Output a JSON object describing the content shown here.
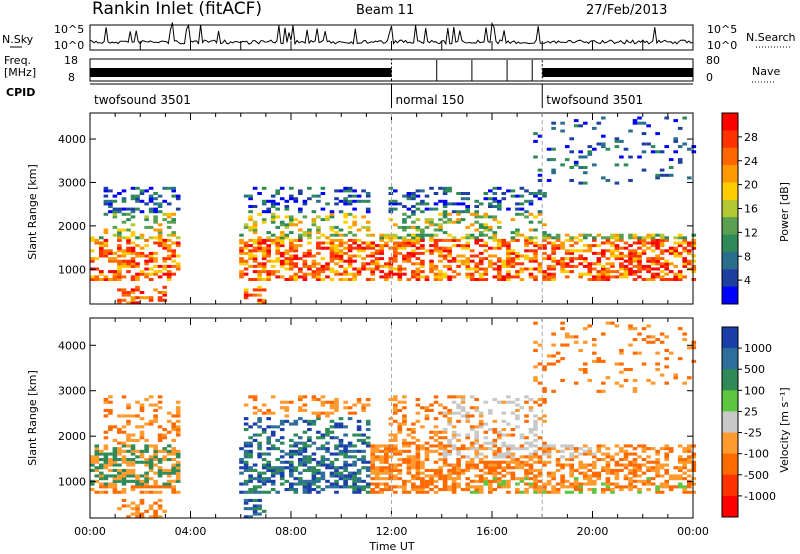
{
  "header": {
    "radar_title": "Rankin Inlet (fitACF)",
    "beam_label": "Beam 11",
    "date_label": "27/Feb/2013"
  },
  "strip_panels": {
    "nsky_label": "N.Sky",
    "nsky_ticks": [
      "10^5",
      "10^0"
    ],
    "nsearch_label": "N.Search",
    "nsearch_ticks": [
      "10^5",
      "10^0"
    ],
    "freq_label_line1": "Freq.",
    "freq_label_line2": "[MHz]",
    "freq_ticks": [
      "18",
      "8"
    ],
    "nave_label": "Nave",
    "nave_ticks": [
      "80",
      "0"
    ],
    "cpid_label": "CPID",
    "cpid_segments": [
      {
        "label": "twofsound 3501",
        "start_hour": 0,
        "end_hour": 12
      },
      {
        "label": "normal 150",
        "start_hour": 12,
        "end_hour": 18
      },
      {
        "label": "twofsound 3501",
        "start_hour": 18,
        "end_hour": 24
      }
    ]
  },
  "chart_data": [
    {
      "type": "heatmap",
      "name": "power",
      "ylabel": "Slant Range [km]",
      "y_ticks": [
        1000,
        2000,
        3000,
        4000
      ],
      "ylim": [
        200,
        4600
      ],
      "x_ticks": [
        "00:00",
        "04:00",
        "08:00",
        "12:00",
        "16:00",
        "20:00",
        "00:00"
      ],
      "xlim_hours": [
        0,
        24
      ],
      "colorbar_label": "Power [dB]",
      "colorbar_ticks": [
        "28",
        "24",
        "20",
        "16",
        "12",
        "8",
        "4"
      ],
      "colorbar_colors": [
        "#ff0000",
        "#ff3300",
        "#ff6600",
        "#ff9900",
        "#ffcc00",
        "#b4c832",
        "#5aa050",
        "#2e8b57",
        "#2a6e8e",
        "#1e3fa0",
        "#0000ff"
      ]
    },
    {
      "type": "heatmap",
      "name": "velocity",
      "ylabel": "Slant Range [km]",
      "y_ticks": [
        1000,
        2000,
        3000,
        4000
      ],
      "ylim": [
        200,
        4600
      ],
      "x_ticks": [
        "00:00",
        "04:00",
        "08:00",
        "12:00",
        "16:00",
        "20:00",
        "00:00"
      ],
      "xlim_hours": [
        0,
        24
      ],
      "xlabel": "Time UT",
      "colorbar_label": "Velocity [m s⁻¹]",
      "colorbar_ticks": [
        "1000",
        "500",
        "100",
        "25",
        "-25",
        "-100",
        "-500",
        "-1000"
      ],
      "colorbar_colors": [
        "#1a3fa8",
        "#2e6e9a",
        "#2e8b57",
        "#5cc640",
        "#c8c8c8",
        "#ff9a2e",
        "#ff6a00",
        "#ff3300",
        "#ff0000"
      ]
    }
  ]
}
